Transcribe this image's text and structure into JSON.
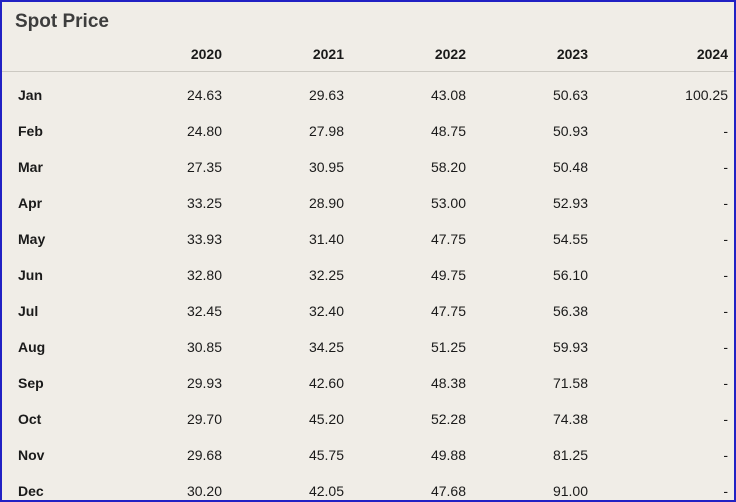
{
  "title": "Spot Price",
  "colors": {
    "background": "#f0ede7",
    "border": "#2121c4",
    "title_text": "#3d3d3d",
    "header_text": "#1a1a1a",
    "body_text": "#1a1a1a",
    "separator": "#ccc9c2"
  },
  "table": {
    "columns": [
      "2020",
      "2021",
      "2022",
      "2023",
      "2024"
    ],
    "rows": [
      {
        "month": "Jan",
        "values": [
          "24.63",
          "29.63",
          "43.08",
          "50.63",
          "100.25"
        ]
      },
      {
        "month": "Feb",
        "values": [
          "24.80",
          "27.98",
          "48.75",
          "50.93",
          "-"
        ]
      },
      {
        "month": "Mar",
        "values": [
          "27.35",
          "30.95",
          "58.20",
          "50.48",
          "-"
        ]
      },
      {
        "month": "Apr",
        "values": [
          "33.25",
          "28.90",
          "53.00",
          "52.93",
          "-"
        ]
      },
      {
        "month": "May",
        "values": [
          "33.93",
          "31.40",
          "47.75",
          "54.55",
          "-"
        ]
      },
      {
        "month": "Jun",
        "values": [
          "32.80",
          "32.25",
          "49.75",
          "56.10",
          "-"
        ]
      },
      {
        "month": "Jul",
        "values": [
          "32.45",
          "32.40",
          "47.75",
          "56.38",
          "-"
        ]
      },
      {
        "month": "Aug",
        "values": [
          "30.85",
          "34.25",
          "51.25",
          "59.93",
          "-"
        ]
      },
      {
        "month": "Sep",
        "values": [
          "29.93",
          "42.60",
          "48.38",
          "71.58",
          "-"
        ]
      },
      {
        "month": "Oct",
        "values": [
          "29.70",
          "45.20",
          "52.28",
          "74.38",
          "-"
        ]
      },
      {
        "month": "Nov",
        "values": [
          "29.68",
          "45.75",
          "49.88",
          "81.25",
          "-"
        ]
      },
      {
        "month": "Dec",
        "values": [
          "30.20",
          "42.05",
          "47.68",
          "91.00",
          "-"
        ]
      }
    ]
  }
}
